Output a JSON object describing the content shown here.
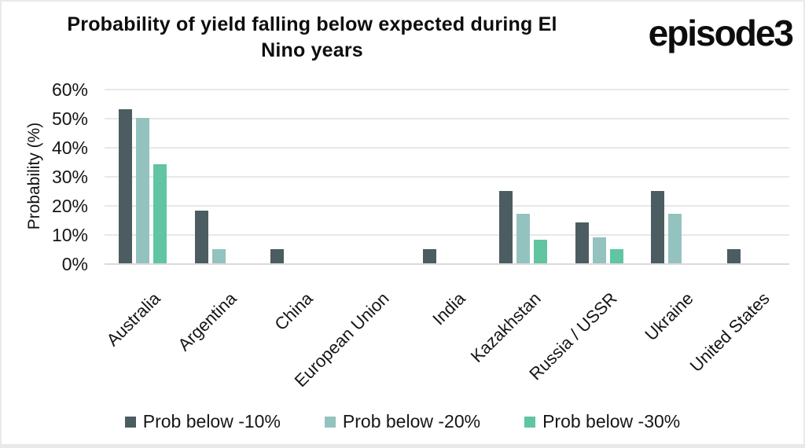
{
  "header": {
    "title": "Probability of yield falling below expected during El Nino years",
    "title_line1": "Probability of yield falling below expected during El",
    "title_line2": "Nino years",
    "logo_text": "episode3"
  },
  "colors": {
    "series_dark": "#4b5d60",
    "series_light_teal": "#94c2bf",
    "series_green": "#60c5a0",
    "gridline": "#e8e8e8",
    "page_border": "#e9e9e9",
    "text": "#161616"
  },
  "chart_data": {
    "type": "bar",
    "title": "Probability of yield falling below expected during El Nino years",
    "xlabel": "",
    "ylabel": "Probability (%)",
    "ylim": [
      0,
      60
    ],
    "ytick_step": 10,
    "ytick_suffix": "%",
    "grid": true,
    "legend_position": "bottom",
    "categories": [
      "Australia",
      "Argentina",
      "China",
      "European Union",
      "India",
      "Kazakhstan",
      "Russia / USSR",
      "Ukraine",
      "United States"
    ],
    "series": [
      {
        "name": "Prob below -10%",
        "color": "#4b5d60",
        "values": [
          53,
          18,
          5,
          0,
          5,
          25,
          14,
          25,
          5
        ]
      },
      {
        "name": "Prob below -20%",
        "color": "#94c2bf",
        "values": [
          50,
          5,
          0,
          0,
          0,
          17,
          9,
          17,
          0
        ]
      },
      {
        "name": "Prob below -30%",
        "color": "#60c5a0",
        "values": [
          34,
          0,
          0,
          0,
          0,
          8,
          5,
          0,
          0
        ]
      }
    ]
  }
}
